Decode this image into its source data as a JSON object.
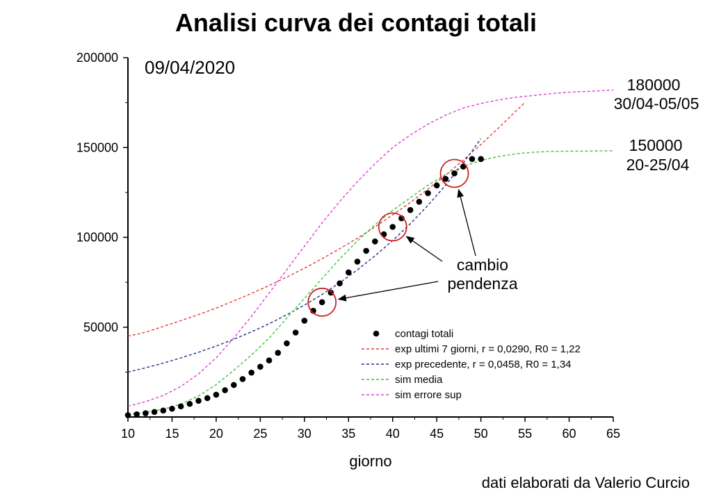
{
  "chart_data": {
    "type": "scatter",
    "title": "Analisi curva dei contagi totali",
    "date_label": "09/04/2020",
    "xlabel": "giorno",
    "ylabel": "",
    "xlim": [
      10,
      65
    ],
    "ylim": [
      0,
      200000
    ],
    "x_ticks": [
      10,
      15,
      20,
      25,
      30,
      35,
      40,
      45,
      50,
      55,
      60,
      65
    ],
    "y_ticks": [
      50000,
      100000,
      150000,
      200000
    ],
    "grid": false,
    "legend_position": "bottom-right",
    "points": {
      "name": "contagi totali",
      "color": "#000000",
      "x": [
        10,
        11,
        12,
        13,
        14,
        15,
        16,
        17,
        18,
        19,
        20,
        21,
        22,
        23,
        24,
        25,
        26,
        27,
        28,
        29,
        30,
        31,
        32,
        33,
        34,
        35,
        36,
        37,
        38,
        39,
        40,
        41,
        42,
        43,
        44,
        45,
        46,
        47,
        48,
        49,
        50
      ],
      "y": [
        1000,
        1500,
        2100,
        2800,
        3600,
        4600,
        5900,
        7300,
        9000,
        10500,
        12400,
        14900,
        17800,
        21100,
        24700,
        27980,
        31500,
        35700,
        41000,
        47000,
        53600,
        59100,
        63900,
        69200,
        74400,
        80500,
        86500,
        92500,
        97700,
        101700,
        105800,
        110600,
        115200,
        119800,
        124600,
        128900,
        132500,
        135600,
        139400,
        143600,
        143600
      ]
    },
    "series": [
      {
        "name": "exp ultimi 7 giorni, r = 0,0290, R0 = 1,22",
        "color": "#e03c3c",
        "x": [
          10,
          12,
          14,
          16,
          18,
          20,
          22,
          24,
          26,
          28,
          30,
          32,
          34,
          36,
          38,
          40,
          42,
          44,
          46,
          48,
          50,
          52,
          54,
          55
        ],
        "y": [
          45000,
          47200,
          50400,
          53600,
          57000,
          60600,
          64600,
          68800,
          73200,
          77900,
          82800,
          88100,
          93700,
          99500,
          105800,
          112500,
          119400,
          126900,
          134600,
          143000,
          151700,
          160900,
          170500,
          175000
        ]
      },
      {
        "name": "exp precedente, r = 0,0458, R0 = 1,34",
        "color": "#2a2a8c",
        "x": [
          10,
          12,
          14,
          16,
          18,
          20,
          22,
          24,
          26,
          28,
          30,
          32,
          34,
          36,
          38,
          40,
          42,
          44,
          46,
          48,
          50
        ],
        "y": [
          25000,
          27400,
          30000,
          32900,
          36000,
          39500,
          43300,
          47400,
          51900,
          56900,
          62300,
          68200,
          74700,
          81900,
          89700,
          98200,
          107600,
          117800,
          129000,
          141400,
          154900
        ]
      },
      {
        "name": "sim media",
        "color": "#3cc43c",
        "x": [
          10,
          12,
          14,
          16,
          18,
          20,
          22,
          24,
          26,
          28,
          30,
          32,
          34,
          36,
          38,
          40,
          42,
          44,
          46,
          48,
          50,
          52,
          54,
          56,
          58,
          60,
          62,
          65
        ],
        "y": [
          1500,
          2600,
          4300,
          7200,
          11700,
          18000,
          26000,
          34500,
          44000,
          55000,
          66000,
          77000,
          88000,
          98000,
          107000,
          115000,
          122000,
          129000,
          135000,
          139500,
          142800,
          145000,
          146500,
          147400,
          147800,
          148000,
          148000,
          148200
        ]
      },
      {
        "name": "sim errore sup",
        "color": "#d642d6",
        "x": [
          10,
          12,
          14,
          16,
          18,
          20,
          22,
          24,
          26,
          28,
          30,
          32,
          34,
          36,
          38,
          40,
          42,
          44,
          46,
          48,
          50,
          52,
          54,
          56,
          58,
          60,
          62,
          65
        ],
        "y": [
          6000,
          8500,
          12000,
          17000,
          24000,
          33000,
          44000,
          56000,
          69000,
          82000,
          95000,
          108000,
          120000,
          131000,
          141000,
          150000,
          157000,
          163000,
          168000,
          172000,
          174500,
          176500,
          178000,
          179000,
          180000,
          180800,
          181200,
          182000
        ]
      }
    ],
    "annotations": {
      "top_value": "180000",
      "top_dates": "30/04-05/05",
      "mid_value": "150000",
      "mid_dates": "20-25/04",
      "change_line1": "cambio",
      "change_line2": "pendenza"
    },
    "highlight_circles_x": [
      32,
      40,
      47
    ],
    "highlight_color": "#cc2222",
    "credit": "dati elaborati da Valerio Curcio"
  }
}
